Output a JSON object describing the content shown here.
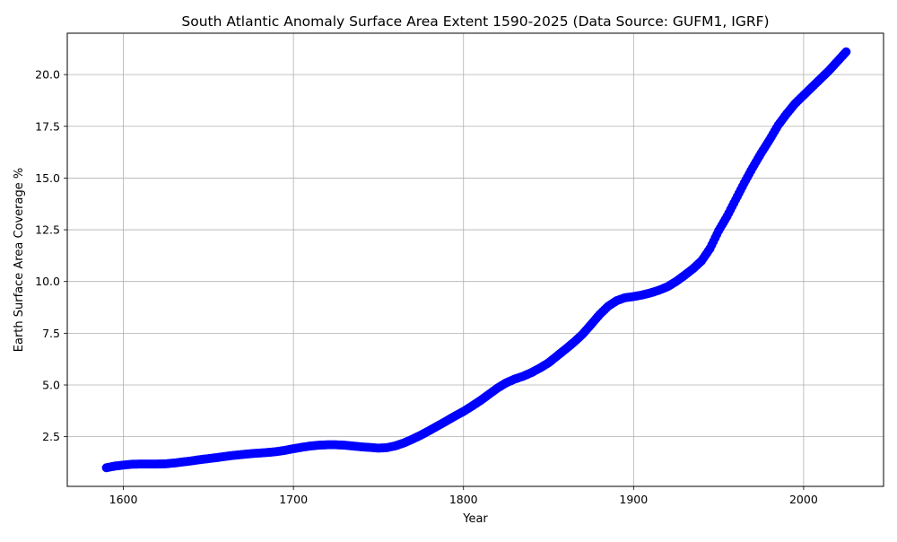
{
  "chart_data": {
    "type": "scatter",
    "title": "South Atlantic Anomaly Surface Area Extent 1590-2025 (Data Source: GUFM1, IGRF)",
    "xlabel": "Year",
    "ylabel": "Earth Surface Area Coverage %",
    "xlim": [
      1567,
      2047
    ],
    "ylim": [
      0.1,
      22.0
    ],
    "xticks": [
      1600,
      1700,
      1800,
      1900,
      2000
    ],
    "yticks": [
      2.5,
      5.0,
      7.5,
      10.0,
      12.5,
      15.0,
      17.5,
      20.0
    ],
    "xtick_labels": [
      "1600",
      "1700",
      "1800",
      "1900",
      "2000"
    ],
    "ytick_labels": [
      "2.5",
      "5.0",
      "7.5",
      "10.0",
      "12.5",
      "15.0",
      "17.5",
      "20.0"
    ],
    "grid": true,
    "marker_color": "#0000ff",
    "series": [
      {
        "x": [
          1590,
          1595,
          1600,
          1605,
          1610,
          1615,
          1620,
          1625,
          1630,
          1635,
          1640,
          1645,
          1650,
          1655,
          1660,
          1665,
          1670,
          1675,
          1680,
          1685,
          1690,
          1695,
          1700,
          1705,
          1710,
          1715,
          1720,
          1725,
          1730,
          1735,
          1740,
          1745,
          1750,
          1755,
          1760,
          1765,
          1770,
          1775,
          1780,
          1785,
          1790,
          1795,
          1800,
          1805,
          1810,
          1815,
          1820,
          1825,
          1830,
          1835,
          1840,
          1845,
          1850,
          1855,
          1860,
          1865,
          1870,
          1875,
          1880,
          1885,
          1890,
          1895,
          1900,
          1905,
          1910,
          1915,
          1920,
          1925,
          1930,
          1935,
          1940,
          1945,
          1950,
          1955,
          1960,
          1965,
          1970,
          1975,
          1980,
          1985,
          1990,
          1995,
          2000,
          2005,
          2010,
          2015,
          2020,
          2025
        ],
        "y": [
          1.0,
          1.08,
          1.13,
          1.17,
          1.18,
          1.18,
          1.18,
          1.19,
          1.23,
          1.28,
          1.33,
          1.39,
          1.44,
          1.49,
          1.55,
          1.6,
          1.64,
          1.68,
          1.71,
          1.74,
          1.78,
          1.84,
          1.92,
          1.99,
          2.05,
          2.09,
          2.11,
          2.11,
          2.09,
          2.05,
          2.01,
          1.98,
          1.95,
          1.97,
          2.06,
          2.2,
          2.38,
          2.58,
          2.8,
          3.03,
          3.26,
          3.5,
          3.72,
          3.98,
          4.25,
          4.55,
          4.85,
          5.1,
          5.28,
          5.42,
          5.6,
          5.82,
          6.07,
          6.4,
          6.73,
          7.07,
          7.45,
          7.92,
          8.4,
          8.8,
          9.07,
          9.22,
          9.27,
          9.35,
          9.45,
          9.58,
          9.75,
          10.0,
          10.3,
          10.62,
          11.0,
          11.6,
          12.45,
          13.15,
          13.95,
          14.75,
          15.5,
          16.2,
          16.85,
          17.55,
          18.1,
          18.6,
          19.0,
          19.4,
          19.8,
          20.2,
          20.65,
          21.1
        ]
      }
    ]
  }
}
